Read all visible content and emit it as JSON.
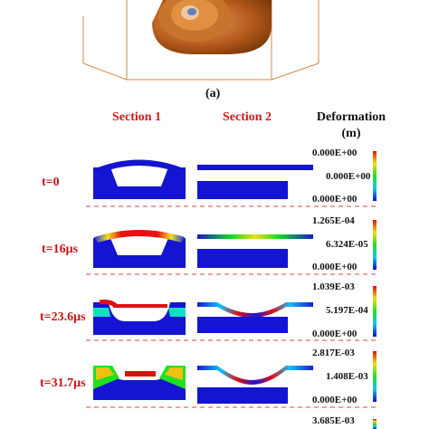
{
  "subfigure_label": "(a)",
  "headers": {
    "section1": "Section 1",
    "section2": "Section 2",
    "deformation": "Deformation",
    "unit": "(m)"
  },
  "rows": [
    {
      "time": "t=0",
      "cb": [
        "0.000E+00",
        "0.000E+00",
        "0.000E+00"
      ]
    },
    {
      "time": "t=16μs",
      "cb": [
        "1.265E-04",
        "6.324E-05",
        "0.000E+00"
      ]
    },
    {
      "time": "t=23.6μs",
      "cb": [
        "1.039E-03",
        "5.197E-04",
        "0.000E+00"
      ]
    },
    {
      "time": "t=31.7μs",
      "cb": [
        "2.817E-03",
        "1.408E-03",
        "0.000E+00"
      ]
    },
    {
      "time": "",
      "cb": [
        "3.685E-03"
      ]
    }
  ],
  "colors": {
    "label_red": "#d11a1a",
    "mesh_blue": "#1414d2",
    "divider_red": "#e04040",
    "cylinder_orange": "#b85c1e"
  },
  "icons": [
    "colorbar-icon",
    "cylinder-icon"
  ]
}
